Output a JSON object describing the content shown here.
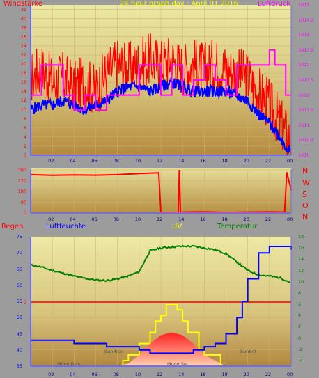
{
  "header": {
    "windstaerke": "Windstärke",
    "title": "24 hour graph day : April 01 2016",
    "luftdruck": "Luftdruck"
  },
  "wind_panel": {
    "left_ticks": [
      "32",
      "30",
      "28",
      "26",
      "24",
      "22",
      "20",
      "18",
      "16",
      "14",
      "12",
      "10",
      "8",
      "6",
      "4",
      "2",
      "0"
    ],
    "right_ticks": [
      "1015",
      "1014,5",
      "1014",
      "1013,5",
      "1013",
      "1012,5",
      "1012",
      "1011,5",
      "1011",
      "1010,5",
      "1010"
    ],
    "x_ticks": [
      "02",
      "04",
      "06",
      "08",
      "10",
      "12",
      "14",
      "16",
      "18",
      "20",
      "22",
      "00"
    ]
  },
  "dir_panel": {
    "left_ticks": [
      "360",
      "270",
      "180",
      "90",
      "0"
    ],
    "compass": [
      "N",
      "W",
      "S",
      "O",
      "N"
    ],
    "x_ticks": [
      "02",
      "04",
      "06",
      "08",
      "10",
      "12",
      "14",
      "16",
      "18",
      "20",
      "22",
      "00"
    ]
  },
  "bottom_header": {
    "regen": "Regen",
    "luftfeuchte": "Luftfeuchte",
    "uv": "UV",
    "temperatur": "Temperatur"
  },
  "bottom_panel": {
    "left_ticks": [
      "75",
      "70",
      "65",
      "60",
      "55",
      "50",
      "45",
      "40",
      "35"
    ],
    "right_ticks": [
      "18",
      "16",
      "14",
      "12",
      "10",
      "8",
      "6",
      "4",
      "2",
      "0",
      "-2",
      "-4"
    ],
    "rain_zero": "0",
    "x_ticks": [
      "02",
      "04",
      "06",
      "08",
      "10",
      "12",
      "14",
      "16",
      "18",
      "20",
      "22",
      "00"
    ],
    "annotations": {
      "moon_rise": "Moon Rise",
      "sunrise": "SunRise",
      "moon_set": "Moon Set",
      "sunset": "SunSet",
      "sunrise_axis": "SunRise",
      "moonset_axis": "MoonSet"
    }
  },
  "colors": {
    "wind": "#ff2000",
    "gust": "#ff0000",
    "average": "#0000ff",
    "pressure": "#ff00ff",
    "humidity": "#0000ff",
    "temperature": "#008000",
    "uv": "#ffff00",
    "rain": "#ff0000",
    "solar": "#ff0000"
  },
  "chart_data": [
    {
      "type": "line",
      "title": "24 hour graph day : April 01 2016",
      "ylabel": "Windstärke",
      "y2label": "Luftdruck",
      "xlim": [
        0,
        24
      ],
      "ylim": [
        0,
        33
      ],
      "y2lim": [
        1010,
        1015
      ],
      "x_ticks": [
        "02",
        "04",
        "06",
        "08",
        "10",
        "12",
        "14",
        "16",
        "18",
        "20",
        "22",
        "00"
      ],
      "series": [
        {
          "hours": [
            0,
            1,
            2,
            3,
            4,
            5,
            6,
            7,
            8,
            9,
            10,
            11,
            12,
            13,
            14,
            15,
            16,
            17,
            18,
            19,
            20,
            21,
            22,
            23,
            23.5,
            24
          ],
          "values": [
            17,
            19,
            16,
            17,
            15,
            16,
            14,
            18,
            20,
            19,
            20,
            21,
            20,
            21,
            19,
            20,
            19,
            20,
            19,
            18,
            17,
            14,
            11,
            7,
            5,
            3
          ]
        },
        {
          "hours": [
            0,
            1,
            2,
            3,
            4,
            5,
            6,
            7,
            8,
            9,
            10,
            11,
            12,
            13,
            14,
            15,
            16,
            17,
            18,
            19,
            20,
            21,
            22,
            23,
            23.5,
            24
          ],
          "values": [
            10,
            11,
            11,
            12,
            11,
            10,
            11,
            12,
            14,
            15,
            15,
            14,
            15,
            16,
            15,
            14,
            14,
            14,
            14,
            13,
            12,
            9,
            7,
            4,
            2,
            0.5
          ]
        },
        {
          "hours": [
            0,
            1,
            2,
            3,
            4,
            5,
            6,
            7,
            8,
            9,
            10,
            11,
            12,
            13,
            14,
            15,
            16,
            17,
            18,
            19,
            20,
            21,
            22,
            22.5,
            23,
            23.5,
            24
          ],
          "values": [
            1012,
            1013,
            1013,
            1012,
            1011.5,
            1012,
            1011.5,
            1012,
            1012,
            1012,
            1013,
            1013,
            1012,
            1013,
            1012,
            1012.5,
            1013,
            1012.5,
            1012,
            1013,
            1013,
            1013,
            1013.5,
            1013,
            1013,
            1012,
            1012
          ]
        }
      ]
    },
    {
      "type": "line",
      "ylim": [
        0,
        360
      ],
      "x_ticks": [
        "02",
        "04",
        "06",
        "08",
        "10",
        "12",
        "14",
        "16",
        "18",
        "20",
        "22",
        "00"
      ],
      "series": [
        {
          "hours": [
            0,
            2,
            4,
            6,
            8,
            10,
            11.8,
            12,
            13.6,
            13.7,
            13.8,
            14,
            16,
            18,
            20,
            22,
            23.4,
            23.6,
            24
          ],
          "values": [
            320,
            315,
            318,
            316,
            320,
            330,
            335,
            5,
            5,
            360,
            5,
            8,
            10,
            5,
            8,
            10,
            8,
            340,
            190
          ]
        }
      ]
    },
    {
      "type": "line",
      "xlim": [
        0,
        24
      ],
      "ylim": [
        35,
        75
      ],
      "y2lim": [
        -5,
        18
      ],
      "x_ticks": [
        "02",
        "04",
        "06",
        "08",
        "10",
        "12",
        "14",
        "16",
        "18",
        "20",
        "22",
        "00"
      ],
      "series": [
        {
          "name": "Luftfeuchte",
          "hours": [
            0,
            1,
            2,
            3,
            4,
            5,
            6,
            7,
            8,
            9,
            10,
            10.5,
            11,
            12,
            13,
            14,
            15,
            16,
            17,
            18,
            19,
            19.5,
            20,
            21,
            22,
            23,
            24
          ],
          "values": [
            43,
            43,
            43,
            43,
            42,
            42,
            42,
            41,
            41,
            41,
            40,
            40,
            39,
            39,
            39,
            39,
            40,
            41,
            42,
            45,
            50,
            55,
            62,
            70,
            72,
            72,
            71
          ]
        },
        {
          "name": "Temperatur",
          "hours": [
            0,
            1,
            2,
            3,
            4,
            5,
            6,
            7,
            8,
            9,
            10,
            11,
            12,
            13,
            14,
            15,
            16,
            17,
            18,
            19,
            20,
            21,
            22,
            23,
            24
          ],
          "values": [
            13,
            12.6,
            12,
            11.5,
            11,
            10.6,
            10.3,
            10.2,
            10.5,
            11,
            11.8,
            15.5,
            16,
            16.2,
            16.3,
            16.3,
            16,
            15.7,
            15,
            13.5,
            12,
            11.2,
            11,
            10.7,
            9.8
          ]
        },
        {
          "name": "UV",
          "hours": [
            7.8,
            8.5,
            9,
            10,
            11,
            11.5,
            12,
            12.5,
            13,
            13.5,
            14,
            14.5,
            15,
            15.5,
            16,
            16.5,
            17,
            17.5,
            18
          ],
          "values": [
            -5,
            -4,
            -3,
            -1,
            1,
            3,
            4,
            6,
            6,
            5,
            3,
            1,
            1,
            -2,
            -3,
            -3,
            -3,
            -5,
            -5
          ]
        },
        {
          "name": "Solar",
          "hours": [
            8,
            9,
            10,
            11,
            12,
            13,
            14,
            15,
            16,
            17,
            18
          ],
          "values": [
            -5,
            -4.5,
            -3,
            -1,
            0.5,
            1,
            0.5,
            -1,
            -3,
            -4,
            -5
          ]
        }
      ]
    }
  ]
}
